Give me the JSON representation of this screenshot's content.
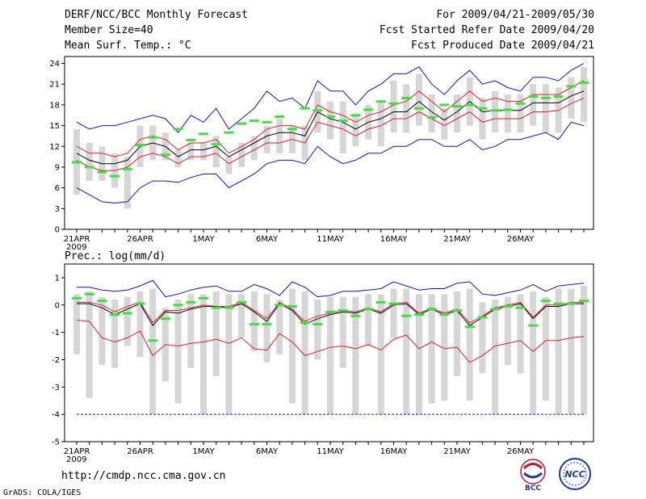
{
  "header": {
    "title": "DERF/NCC/BCC Monthly Forecast",
    "member_size": "Member Size=40",
    "variable": "Mean Surf. Temp.: °C",
    "period": "For 2009/04/21-2009/05/30",
    "started": "Fcst Started Refer Date 2009/04/20",
    "produced": "Fcst Produced Date 2009/04/21"
  },
  "footer": {
    "url": "http://cmdp.ncc.cma.gov.cn",
    "credit": "GrADS: COLA/IGES",
    "logo_bcc": "BCC",
    "logo_ncc": "NCC"
  },
  "colors": {
    "box": "#d6d6d6",
    "mean": "#000000",
    "band": "#e0202a",
    "envelope": "#1010d0",
    "obs": "#40e040",
    "floor": "#1010d0"
  },
  "chart_data": [
    {
      "type": "box",
      "title": "Mean Surf. Temp.: °C",
      "xlabel": "",
      "x_tick_labels": [
        "21APR",
        "26APR",
        "1MAY",
        "6MAY",
        "11MAY",
        "16MAY",
        "21MAY",
        "26MAY"
      ],
      "year_label": "2009",
      "ylim": [
        0,
        25
      ],
      "y_ticks": [
        0,
        3,
        6,
        9,
        12,
        15,
        18,
        21,
        24
      ],
      "series": [
        {
          "name": "envelope_max",
          "values": [
            15.5,
            14.5,
            15,
            15,
            15.5,
            16,
            16.5,
            16,
            14,
            16.5,
            15.5,
            17.5,
            14.5,
            16,
            17.5,
            20,
            18.5,
            19,
            17.5,
            21.5,
            20,
            20,
            18,
            20,
            21,
            22.5,
            22.5,
            23.5,
            21,
            19.5,
            21.5,
            23,
            21,
            21.5,
            20.5,
            20,
            22,
            22,
            21.5,
            23,
            24
          ]
        },
        {
          "name": "band_upper",
          "values": [
            12,
            11,
            11,
            10.5,
            11,
            13,
            13.5,
            13,
            11.5,
            12.5,
            12.5,
            13,
            11,
            12,
            13,
            14.5,
            15,
            15,
            14.5,
            18,
            17,
            16.5,
            15.5,
            16.5,
            17,
            18,
            18.5,
            20,
            18.5,
            17,
            18.5,
            20,
            18.5,
            19,
            18.5,
            18.5,
            19.5,
            19.5,
            19.5,
            20.5,
            21.5
          ]
        },
        {
          "name": "ensemble_mean",
          "values": [
            11,
            10,
            9.5,
            9.5,
            10,
            12,
            12.5,
            12,
            10.5,
            11.5,
            11.5,
            12,
            10.5,
            11.5,
            12.5,
            13.5,
            14,
            14,
            13.5,
            17,
            16,
            15.5,
            14.5,
            15.5,
            16,
            17,
            17,
            18.5,
            17,
            15.8,
            17,
            18.5,
            17,
            17.2,
            17.2,
            17.2,
            18.3,
            18.3,
            18.3,
            19.3,
            20
          ]
        },
        {
          "name": "band_lower",
          "values": [
            10,
            9,
            8.5,
            8.5,
            9,
            10.5,
            11,
            10.5,
            9.5,
            10.5,
            10.5,
            11,
            9.5,
            10.5,
            11.5,
            12.5,
            12.5,
            13,
            12.5,
            15.5,
            15,
            14.5,
            13.5,
            14.5,
            15,
            16,
            16,
            17,
            16,
            15,
            16,
            17,
            15.5,
            16,
            16,
            16,
            17,
            17,
            17.2,
            18.2,
            19
          ]
        },
        {
          "name": "envelope_min",
          "values": [
            6,
            5,
            4,
            3.8,
            4,
            6,
            7,
            7,
            6.8,
            7.5,
            8,
            8,
            6,
            7,
            8,
            9.5,
            10,
            10,
            9.5,
            12,
            10.5,
            9.5,
            10,
            11,
            11,
            12,
            12,
            13,
            13,
            12,
            12,
            13,
            11.5,
            12,
            13,
            13,
            13.5,
            14,
            13,
            15.5,
            15
          ]
        },
        {
          "name": "box_max",
          "values": [
            14.5,
            12.5,
            12,
            11,
            10.5,
            15,
            15,
            14,
            11.5,
            12.5,
            12.5,
            13.5,
            10.5,
            12.5,
            13.5,
            15,
            16,
            15,
            15,
            20,
            18.5,
            18.5,
            16.5,
            18,
            18.5,
            21.5,
            21,
            22.5,
            19.5,
            17.5,
            19.5,
            22,
            19,
            20,
            19.5,
            19.5,
            21,
            21,
            20.5,
            22,
            23.5
          ]
        },
        {
          "name": "box_min",
          "values": [
            5,
            7,
            7,
            6,
            3,
            9,
            10,
            10,
            9,
            10,
            10,
            9,
            8,
            9,
            10,
            11,
            11,
            11,
            10,
            14,
            13,
            11,
            12,
            13,
            12,
            14,
            14,
            15,
            14,
            13,
            14,
            15,
            13,
            14,
            14,
            14,
            15,
            14,
            14,
            16,
            15.5
          ]
        },
        {
          "name": "observed",
          "values": [
            9.7,
            9,
            8.3,
            7.7,
            8.7,
            12.2,
            13.3,
            10.8,
            14.5,
            12.9,
            13.8,
            12.3,
            14,
            15.3,
            15.7,
            15.5,
            16.3,
            14.5,
            17.5,
            17.2,
            16.3,
            15.7,
            16.5,
            17.3,
            18.5,
            18.2,
            19,
            17.5,
            16.2,
            18,
            17.8,
            18,
            17.5,
            17.2,
            17.3,
            18.2,
            19.2,
            19,
            19.2,
            20.7,
            21.2
          ]
        }
      ]
    },
    {
      "type": "box",
      "title": "Prec.: log(mm/d)",
      "xlabel": "",
      "x_tick_labels": [
        "21APR",
        "26APR",
        "1MAY",
        "6MAY",
        "11MAY",
        "16MAY",
        "21MAY",
        "26MAY"
      ],
      "year_label": "2009",
      "ylim": [
        -5,
        1.5
      ],
      "y_ticks": [
        -5,
        -4,
        -3,
        -2,
        -1,
        0,
        1
      ],
      "floor_value": -4,
      "series": [
        {
          "name": "envelope_max",
          "values": [
            0.65,
            0.65,
            0.55,
            0.5,
            0.55,
            0.7,
            0.9,
            0.3,
            0.4,
            0.55,
            0.65,
            0.7,
            0.5,
            0.5,
            0.75,
            0.6,
            0.35,
            0.85,
            0.65,
            0.3,
            0.35,
            0.5,
            0.5,
            0.55,
            0.6,
            0.85,
            0.7,
            0.55,
            0.6,
            0.6,
            0.8,
            0.85,
            0.4,
            0.35,
            0.45,
            0.55,
            0.75,
            0.5,
            0.7,
            0.75,
            0.8
          ]
        },
        {
          "name": "ensemble_mean",
          "values": [
            0.05,
            0.05,
            -0.1,
            -0.35,
            -0.15,
            0.05,
            -0.75,
            -0.25,
            -0.3,
            -0.15,
            -0.05,
            -0.05,
            -0.1,
            0.05,
            -0.25,
            -0.6,
            0.05,
            -0.2,
            -0.7,
            -0.5,
            -0.35,
            -0.25,
            -0.3,
            -0.15,
            -0.3,
            0,
            0.05,
            -0.35,
            -0.15,
            -0.35,
            -0.2,
            -0.75,
            -0.45,
            -0.15,
            -0.05,
            0.05,
            -0.5,
            -0.05,
            -0.05,
            0.05,
            0.05
          ]
        },
        {
          "name": "band_upper",
          "values": [
            0.1,
            0.1,
            0,
            -0.25,
            -0.05,
            0.1,
            -0.65,
            -0.2,
            -0.2,
            -0.1,
            0,
            -0.05,
            -0.05,
            0.1,
            -0.2,
            -0.5,
            0.1,
            -0.15,
            -0.6,
            -0.4,
            -0.3,
            -0.2,
            -0.25,
            -0.1,
            -0.25,
            0.05,
            0.1,
            -0.3,
            -0.1,
            -0.3,
            -0.15,
            -0.65,
            -0.4,
            -0.1,
            0,
            0.1,
            -0.45,
            0,
            0,
            0.1,
            0.1
          ]
        },
        {
          "name": "band_lower",
          "values": [
            -0.55,
            -0.6,
            -1.2,
            -1.35,
            -1.2,
            -0.95,
            -1.85,
            -1.45,
            -1.5,
            -1.4,
            -1.35,
            -1.25,
            -1.4,
            -1.2,
            -1.6,
            -1.65,
            -1.05,
            -1.35,
            -1.85,
            -1.7,
            -1.55,
            -1.5,
            -1.6,
            -1.45,
            -1.65,
            -1.25,
            -1.1,
            -1.6,
            -1.35,
            -1.6,
            -1.55,
            -2.1,
            -1.85,
            -1.5,
            -1.4,
            -1.3,
            -1.7,
            -1.3,
            -1.3,
            -1.2,
            -1.15
          ]
        },
        {
          "name": "box_max",
          "values": [
            0.4,
            0.5,
            0.3,
            0.2,
            0.3,
            0.5,
            0.6,
            -0.1,
            0.2,
            0.4,
            0.4,
            0.5,
            0.4,
            0.4,
            0.5,
            0.4,
            0.2,
            0.6,
            0.5,
            0.2,
            0.3,
            0.3,
            0.3,
            0.4,
            0.4,
            0.6,
            0.6,
            0.4,
            0.4,
            0.4,
            0.5,
            0.6,
            0.1,
            0.2,
            0.3,
            0.4,
            0.5,
            0.3,
            0.6,
            0.6,
            0.7
          ]
        },
        {
          "name": "box_min",
          "values": [
            -1.8,
            -3.4,
            -2.2,
            -2.3,
            -1.5,
            -1.9,
            -4,
            -2.8,
            -3.6,
            -2.3,
            -4,
            -2.6,
            -4,
            -1.2,
            -1.7,
            -2.1,
            -1.8,
            -3.6,
            -4,
            -2,
            -4,
            -2.3,
            -4,
            -1.5,
            -4,
            -1.2,
            -4,
            -4,
            -3.6,
            -3.5,
            -2.6,
            -3.5,
            -2.5,
            -4,
            -2.2,
            -2.5,
            -4,
            -3.5,
            -4,
            -4,
            -4
          ]
        },
        {
          "name": "observed",
          "values": [
            0.25,
            0.4,
            0.15,
            -0.35,
            -0.3,
            0.05,
            -1.3,
            -0.5,
            0,
            0.1,
            0.25,
            -0.1,
            -0.1,
            0.1,
            -0.7,
            -0.7,
            0,
            -0.05,
            -0.65,
            -0.7,
            -0.25,
            -0.2,
            -0.4,
            -0.15,
            0.1,
            0.05,
            -0.4,
            -0.35,
            -0.15,
            -0.35,
            -0.2,
            -0.8,
            -0.45,
            -0.15,
            -0.05,
            -0.1,
            -0.75,
            0.15,
            0.05,
            0.05,
            0.15
          ]
        }
      ]
    }
  ]
}
